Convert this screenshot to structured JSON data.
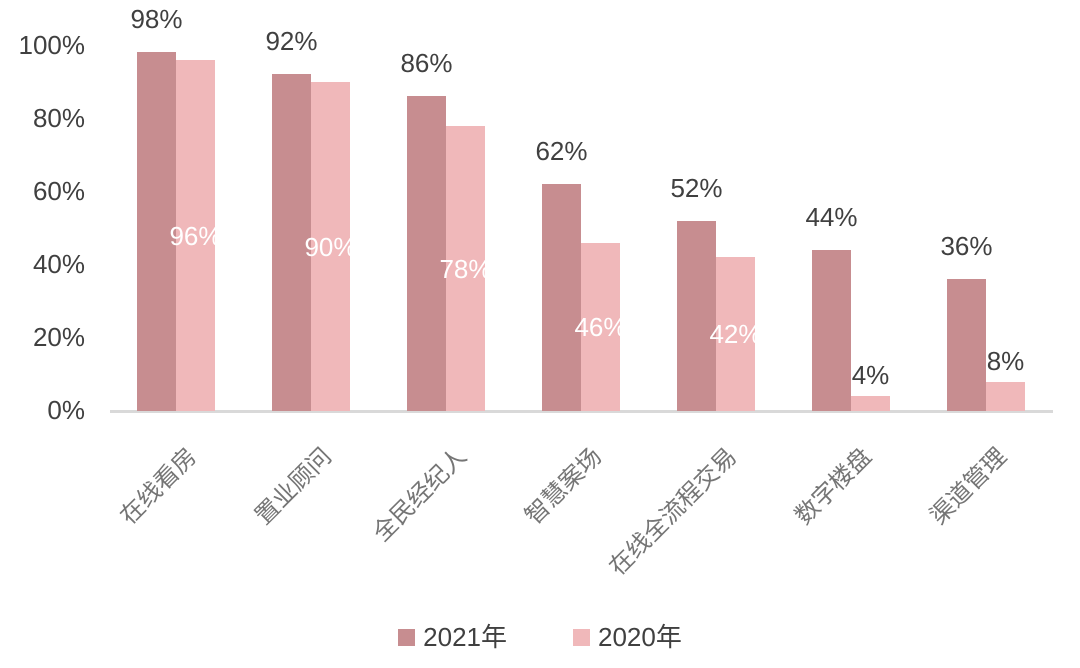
{
  "chart_data": {
    "type": "bar",
    "categories": [
      "在线看房",
      "置业顾问",
      "全民经纪人",
      "智慧案场",
      "在线全流程交易",
      "数字楼盘",
      "渠道管理"
    ],
    "series": [
      {
        "name": "2021年",
        "color": "#C78D90",
        "values": [
          98,
          92,
          86,
          62,
          52,
          44,
          36
        ]
      },
      {
        "name": "2020年",
        "color": "#F0B8BA",
        "values": [
          96,
          90,
          78,
          46,
          42,
          4,
          8
        ]
      }
    ],
    "value_label_format": "percent",
    "title": "",
    "xlabel": "",
    "ylabel": "",
    "y_ticks": [
      "100%",
      "80%",
      "60%",
      "40%",
      "20%",
      "0%"
    ],
    "ylim": [
      0,
      100
    ],
    "grid": false,
    "legend_position": "bottom",
    "label_rotation_deg": 45
  },
  "colors": {
    "series_2021": "#C78D90",
    "series_2020": "#F0B8BA",
    "axis_line": "#d9d9d9",
    "tick_text": "#404040",
    "value_text_dark": "#404040",
    "value_text_light": "#ffffff",
    "category_text": "#757575",
    "background": "#ffffff"
  },
  "legend": {
    "items": [
      {
        "label": "2021年"
      },
      {
        "label": "2020年"
      }
    ]
  }
}
